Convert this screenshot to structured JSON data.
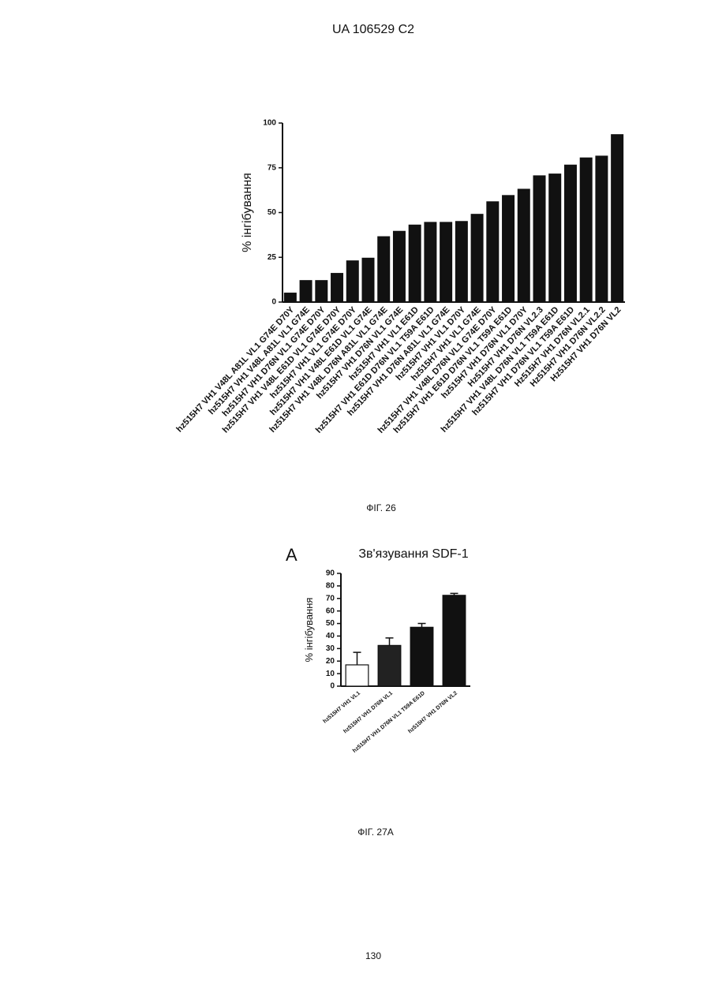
{
  "header": "UA 106529 C2",
  "captions": [
    "ФІГ. 26",
    "ФІГ. 27А"
  ],
  "page_number": "130",
  "chart_data": [
    {
      "type": "bar",
      "ylabel": "% інгібування",
      "color": "#111111",
      "categories": [
        "hz515H7 VH1 V48L A81L VL1 G74E D70Y",
        "hz515H7 VH1 V48L A81L VL1 G74E",
        "hz515H7 VH1 D76N VL1 G74E D70Y",
        "hz515H7 VH1 V48L E61D VL1 G74E D70Y",
        "hz515H7 VH1 VL1 G74E D70Y",
        "hz515H7 VH1 V48L E61D VL1 G74E",
        "hz515H7 VH1 V48L D76N A81L VL1 G74E",
        "hz515H7 VH1 D76N VL1 G74E",
        "hz515H7 VH1 VL1 E61D",
        "hz515H7 VH1 E61D D76N VL1 T59A E61D",
        "hz515H7 VH1 D76N A81L VL1 G74E",
        "hz515H7 VH1 VL1 D70Y",
        "hz515H7 VH1 VL1 G74E",
        "hz515H7 VH1 V48L D76N VL1 G74E D70Y",
        "hz515H7 VH1 E61D D76N VL1 T59A E61D",
        "hz515H7 VH1 D76N VL1 D70Y",
        "Hz515H7 VH1 D76N VL2.3",
        "hz515H7 VH1 V48L D76N VL1 T59A E61D",
        "hz515H7 VH1 D76N VL1 T59A E61D",
        "Hz515H7 VH1 D76N VL2.1",
        "Hz515H7 VH1 D76N VL2.2",
        "Hz515H7 VH1 D76N VL2"
      ],
      "values": [
        5,
        12,
        12,
        16,
        23,
        24.5,
        36.5,
        39.5,
        43,
        44.5,
        44.5,
        45,
        49,
        56,
        59.5,
        63,
        70.5,
        71.5,
        76.5,
        80.5,
        81.5,
        93.5
      ],
      "ylim": [
        0,
        100
      ],
      "yticks": [
        0,
        25,
        50,
        75,
        100
      ]
    },
    {
      "type": "bar",
      "panel": "A",
      "title": "Зв'язування SDF-1",
      "ylabel": "% інгібування",
      "colors": [
        "#ffffff",
        "#222222",
        "#111111",
        "#111111"
      ],
      "categories": [
        "hz515H7 VH1 VL1",
        "hz515H7 VH1 D76N VL1",
        "hz515H7 VH1 D76N VL1 T59A E61D",
        "hz515H7 VH1 D76N VL2"
      ],
      "values": [
        17,
        32.5,
        47,
        72.5
      ],
      "errors": [
        10,
        6,
        3,
        1.5
      ],
      "ylim": [
        0,
        90
      ],
      "yticks": [
        0,
        10,
        20,
        30,
        40,
        50,
        60,
        70,
        80,
        90
      ]
    }
  ]
}
